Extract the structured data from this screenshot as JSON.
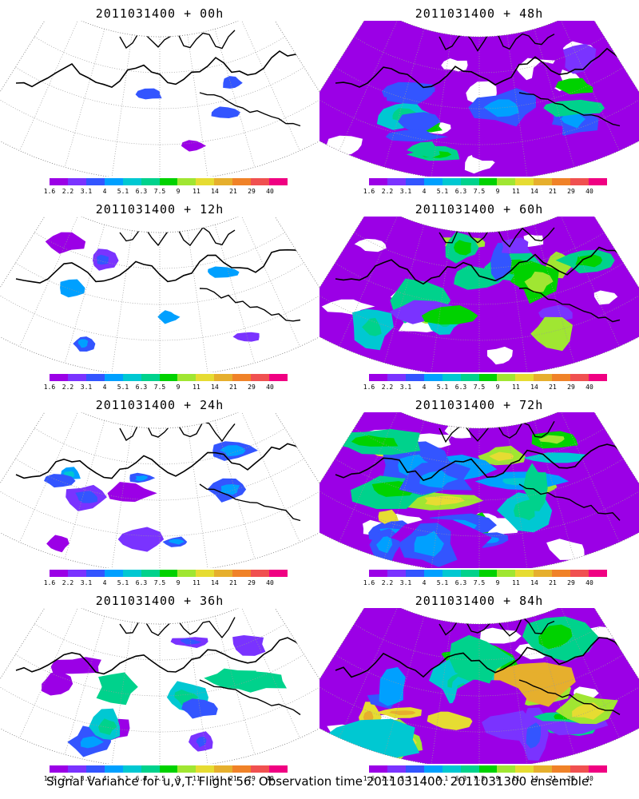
{
  "colorbar": {
    "colors": [
      "#9b00e6",
      "#7a33ff",
      "#3355ff",
      "#00a0ff",
      "#00c8d2",
      "#00d28c",
      "#00d200",
      "#a0e632",
      "#e6dc32",
      "#e6af2d",
      "#f08228",
      "#f05050",
      "#f00082"
    ],
    "ticks": [
      "1.6",
      "2.2",
      "3.1",
      "4",
      "5.1",
      "6.3",
      "7.5",
      "9",
      "11",
      "14",
      "21",
      "29",
      "40"
    ]
  },
  "panels": [
    {
      "title": "2011031400 + 00h",
      "level": 0
    },
    {
      "title": "2011031400 + 12h",
      "level": 1
    },
    {
      "title": "2011031400 + 24h",
      "level": 2
    },
    {
      "title": "2011031400 + 36h",
      "level": 3
    },
    {
      "title": "2011031400 + 48h",
      "level": 4
    },
    {
      "title": "2011031400 + 60h",
      "level": 5
    },
    {
      "title": "2011031400 + 72h",
      "level": 6
    },
    {
      "title": "2011031400 + 84h",
      "level": 7
    }
  ],
  "caption": "Signal Variance for u,v,T. Flight 56. Observation time 2011031400. 2011031300 ensemble."
}
